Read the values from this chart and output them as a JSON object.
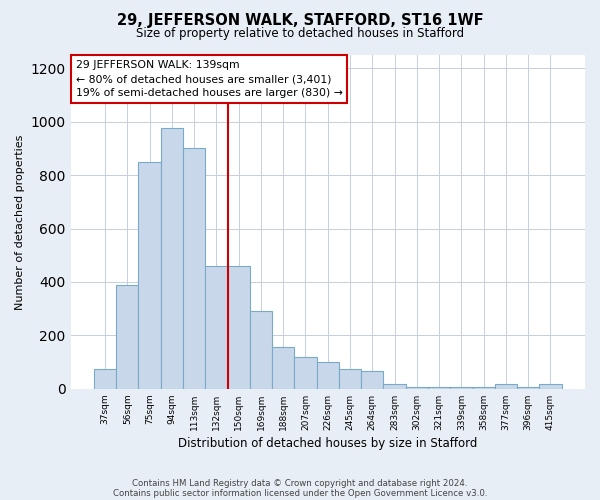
{
  "title1": "29, JEFFERSON WALK, STAFFORD, ST16 1WF",
  "title2": "Size of property relative to detached houses in Stafford",
  "xlabel": "Distribution of detached houses by size in Stafford",
  "ylabel": "Number of detached properties",
  "categories": [
    "37sqm",
    "56sqm",
    "75sqm",
    "94sqm",
    "113sqm",
    "132sqm",
    "150sqm",
    "169sqm",
    "188sqm",
    "207sqm",
    "226sqm",
    "245sqm",
    "264sqm",
    "283sqm",
    "302sqm",
    "321sqm",
    "339sqm",
    "358sqm",
    "377sqm",
    "396sqm",
    "415sqm"
  ],
  "values": [
    75,
    390,
    850,
    975,
    900,
    460,
    460,
    290,
    155,
    120,
    100,
    75,
    65,
    18,
    5,
    5,
    5,
    5,
    18,
    5,
    18
  ],
  "bar_color": "#c8d8ea",
  "bar_edge_color": "#7aaac8",
  "vline_x": 5.5,
  "vline_color": "#cc0000",
  "annotation_text": "29 JEFFERSON WALK: 139sqm\n← 80% of detached houses are smaller (3,401)\n19% of semi-detached houses are larger (830) →",
  "annotation_box_facecolor": "#ffffff",
  "annotation_box_edgecolor": "#cc0000",
  "ylim": [
    0,
    1250
  ],
  "yticks": [
    0,
    200,
    400,
    600,
    800,
    1000,
    1200
  ],
  "footnote1": "Contains HM Land Registry data © Crown copyright and database right 2024.",
  "footnote2": "Contains public sector information licensed under the Open Government Licence v3.0.",
  "bg_color": "#e8eef5",
  "plot_bg_color": "#ffffff",
  "grid_color": "#c5cfe0"
}
